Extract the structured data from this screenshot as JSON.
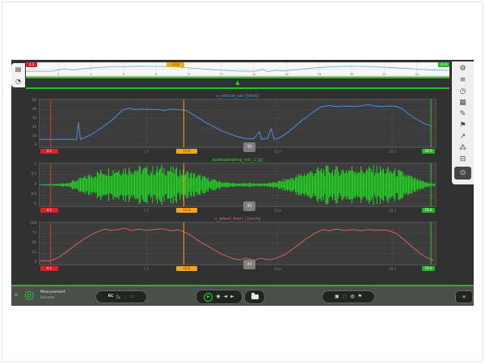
{
  "icons": {
    "left_tabs": [
      {
        "name": "measurement-files-tab",
        "glyph": "▤"
      },
      {
        "name": "time-view-tab",
        "glyph": "◔"
      }
    ],
    "sidebar": [
      {
        "name": "settings",
        "glyph": "⚙"
      },
      {
        "name": "channel-list",
        "glyph": "≡"
      },
      {
        "name": "stopwatch",
        "glyph": "◷"
      },
      {
        "name": "chart-config",
        "glyph": "▦"
      },
      {
        "name": "annotate-pen",
        "glyph": "✎"
      },
      {
        "name": "flag-marker",
        "glyph": "⚑"
      },
      {
        "name": "export",
        "glyph": "↗"
      },
      {
        "name": "network",
        "glyph": "⁂"
      },
      {
        "name": "vehicle",
        "glyph": "⊟"
      },
      {
        "name": "power",
        "glyph": "⊙"
      }
    ]
  },
  "timeline": {
    "badges": {
      "red": "4.1",
      "orange": "12.6",
      "green": "29.9"
    },
    "ticks": [
      "2",
      "4",
      "6",
      "8",
      "10",
      "12",
      "14",
      "16",
      "18",
      "20",
      "22",
      "24"
    ],
    "marker_glyph": "▲"
  },
  "charts_common": {
    "red_badge": "4.1",
    "orange_badge": "12.6",
    "green_badge": "29.9",
    "handle_label": "30"
  },
  "toolbar": {
    "fast_glyph": "»",
    "logo_glyph": "◎",
    "app_label_line1": "Measurement",
    "app_label_line2": "Recorder",
    "rc_label": "RC",
    "ruler_glyph": "◺",
    "dim1_glyph": "◦",
    "dim2_glyph": "▭",
    "play_glyph": "▶",
    "marker_glyph": "◉",
    "prev_glyph": "◄",
    "next_glyph": "►",
    "save_glyph": "▣",
    "save_dim_glyph": "▢",
    "print_glyph": "◍",
    "flag_glyph": "⚑",
    "close_glyph": "✕"
  },
  "colors": {
    "speed_blue": "#4a90d9",
    "audio_green": "#21e021",
    "wheel_red": "#d2635a",
    "cursor_red": "#e03434",
    "cursor_orange": "#f2a71b",
    "cursor_green": "#2dc62d"
  },
  "chart_data": [
    {
      "id": "overview-timeline",
      "type": "line",
      "color": "#6aa7d8",
      "stroke": 0.8,
      "grid": "#d9d9d9",
      "yticks": [
        "",
        "",
        ""
      ],
      "xticks": [
        {
          "pos": 7.7
        },
        {
          "pos": 15.4
        },
        {
          "pos": 23.1
        },
        {
          "pos": 30.8
        },
        {
          "pos": 38.5
        },
        {
          "pos": 46.2
        },
        {
          "pos": 53.8
        },
        {
          "pos": 61.5
        },
        {
          "pos": 69.2
        },
        {
          "pos": 76.9
        },
        {
          "pos": 84.6
        },
        {
          "pos": 92.3
        }
      ],
      "points": [
        [
          0,
          0.3
        ],
        [
          6,
          0.3
        ],
        [
          9,
          0.52
        ],
        [
          11,
          0.42
        ],
        [
          15,
          0.6
        ],
        [
          20,
          0.72
        ],
        [
          26,
          0.78
        ],
        [
          32,
          0.76
        ],
        [
          36,
          0.7
        ],
        [
          40,
          0.58
        ],
        [
          45,
          0.42
        ],
        [
          50,
          0.32
        ],
        [
          54,
          0.3
        ],
        [
          56,
          0.48
        ],
        [
          57,
          0.26
        ],
        [
          59,
          0.4
        ],
        [
          61,
          0.32
        ],
        [
          65,
          0.5
        ],
        [
          70,
          0.68
        ],
        [
          75,
          0.78
        ],
        [
          80,
          0.76
        ],
        [
          85,
          0.68
        ],
        [
          90,
          0.56
        ],
        [
          95,
          0.44
        ],
        [
          100,
          0.38
        ]
      ],
      "cursors": []
    },
    {
      "id": "vehicle-speed",
      "type": "line",
      "title": "v_vehicle_can [km/h]",
      "color": "#4a90d9",
      "stroke": 1,
      "yticks": [
        "50",
        "40",
        "30",
        "20",
        "10",
        "0"
      ],
      "xticks": [
        {
          "pos": 27,
          "label": "7.5"
        },
        {
          "pos": 60,
          "label": "15.0"
        },
        {
          "pos": 89,
          "label": "22.5"
        }
      ],
      "points": [
        [
          0,
          0.14
        ],
        [
          4,
          0.14
        ],
        [
          8.5,
          0.14
        ],
        [
          9.3,
          0.14
        ],
        [
          9.8,
          0.52
        ],
        [
          10.3,
          0.14
        ],
        [
          11.5,
          0.18
        ],
        [
          14,
          0.3
        ],
        [
          18,
          0.55
        ],
        [
          21,
          0.8
        ],
        [
          22.5,
          0.84
        ],
        [
          24,
          0.81
        ],
        [
          26,
          0.82
        ],
        [
          28,
          0.81
        ],
        [
          30,
          0.81
        ],
        [
          31.5,
          0.79
        ],
        [
          33,
          0.82
        ],
        [
          34.5,
          0.81
        ],
        [
          36,
          0.8
        ],
        [
          37,
          0.79
        ],
        [
          39,
          0.68
        ],
        [
          42,
          0.52
        ],
        [
          46,
          0.33
        ],
        [
          50,
          0.2
        ],
        [
          52,
          0.16
        ],
        [
          54,
          0.15
        ],
        [
          55.5,
          0.32
        ],
        [
          56,
          0.14
        ],
        [
          57.5,
          0.16
        ],
        [
          58.5,
          0.38
        ],
        [
          59.2,
          0.14
        ],
        [
          60.5,
          0.17
        ],
        [
          63,
          0.32
        ],
        [
          66,
          0.55
        ],
        [
          69,
          0.75
        ],
        [
          71,
          0.87
        ],
        [
          73,
          0.9
        ],
        [
          75,
          0.88
        ],
        [
          77,
          0.89
        ],
        [
          79,
          0.88
        ],
        [
          81,
          0.89
        ],
        [
          83,
          0.92
        ],
        [
          84.5,
          0.89
        ],
        [
          86.5,
          0.88
        ],
        [
          88.5,
          0.89
        ],
        [
          90,
          0.88
        ],
        [
          91.5,
          0.83
        ],
        [
          93,
          0.72
        ],
        [
          95,
          0.6
        ],
        [
          97,
          0.5
        ],
        [
          99,
          0.44
        ]
      ],
      "cursors": [
        {
          "color": "#e03434",
          "pos": 2.8
        },
        {
          "color": "#f2a71b",
          "pos": 36.4
        },
        {
          "color": "#2dc62d",
          "pos": 98.8
        }
      ]
    },
    {
      "id": "audio-waveform",
      "type": "waveform",
      "title": "audiosampling_mic_1 [g]",
      "color": "#21e021",
      "yticks": [
        "1",
        "0.5",
        "0",
        "-0.5",
        "-1"
      ],
      "xticks": [
        {
          "pos": 27,
          "label": "7.5"
        },
        {
          "pos": 60,
          "label": "15.0"
        },
        {
          "pos": 89,
          "label": "22.5"
        }
      ],
      "envelope": [
        [
          0,
          0.03
        ],
        [
          4,
          0.05
        ],
        [
          7,
          0.12
        ],
        [
          10,
          0.35
        ],
        [
          13,
          0.6
        ],
        [
          16,
          0.85
        ],
        [
          20,
          0.95
        ],
        [
          24,
          1.0
        ],
        [
          28,
          0.92
        ],
        [
          31,
          1.0
        ],
        [
          34,
          0.9
        ],
        [
          37,
          0.75
        ],
        [
          40,
          0.55
        ],
        [
          43,
          0.35
        ],
        [
          46,
          0.18
        ],
        [
          49,
          0.1
        ],
        [
          51,
          0.08
        ],
        [
          53,
          0.12
        ],
        [
          55,
          0.08
        ],
        [
          57,
          0.1
        ],
        [
          59,
          0.14
        ],
        [
          61,
          0.25
        ],
        [
          64,
          0.45
        ],
        [
          67,
          0.7
        ],
        [
          70,
          0.88
        ],
        [
          73,
          0.97
        ],
        [
          76,
          0.9
        ],
        [
          79,
          1.0
        ],
        [
          82,
          0.93
        ],
        [
          85,
          1.0
        ],
        [
          88,
          0.9
        ],
        [
          91,
          0.75
        ],
        [
          93,
          0.55
        ],
        [
          95,
          0.35
        ],
        [
          97,
          0.18
        ],
        [
          99,
          0.07
        ]
      ],
      "cursors": [
        {
          "color": "#e03434",
          "pos": 2.8
        },
        {
          "color": "#f2a71b",
          "pos": 36.4
        },
        {
          "color": "#2dc62d",
          "pos": 98.8
        }
      ]
    },
    {
      "id": "wheel-speed",
      "type": "line",
      "title": "v_wheel_front_l [km/h]",
      "color": "#d2635a",
      "stroke": 1,
      "yticks": [
        "100",
        "75",
        "50",
        "25",
        "0"
      ],
      "xticks": [
        {
          "pos": 27,
          "label": "7.5"
        },
        {
          "pos": 60,
          "label": "15.0"
        },
        {
          "pos": 89,
          "label": "22.5"
        }
      ],
      "points": [
        [
          0,
          0.05
        ],
        [
          3,
          0.06
        ],
        [
          5,
          0.15
        ],
        [
          8,
          0.38
        ],
        [
          11,
          0.6
        ],
        [
          14,
          0.78
        ],
        [
          16.5,
          0.87
        ],
        [
          18,
          0.84
        ],
        [
          20,
          0.86
        ],
        [
          21.5,
          0.9
        ],
        [
          23,
          0.84
        ],
        [
          25,
          0.87
        ],
        [
          27,
          0.84
        ],
        [
          29,
          0.86
        ],
        [
          31,
          0.88
        ],
        [
          33,
          0.83
        ],
        [
          35,
          0.85
        ],
        [
          36.5,
          0.8
        ],
        [
          38,
          0.72
        ],
        [
          40,
          0.58
        ],
        [
          43,
          0.4
        ],
        [
          46,
          0.22
        ],
        [
          48.5,
          0.12
        ],
        [
          50.5,
          0.08
        ],
        [
          52,
          0.13
        ],
        [
          54,
          0.07
        ],
        [
          56,
          0.12
        ],
        [
          58,
          0.08
        ],
        [
          60,
          0.13
        ],
        [
          62,
          0.22
        ],
        [
          64.5,
          0.4
        ],
        [
          67,
          0.6
        ],
        [
          69.5,
          0.76
        ],
        [
          71.5,
          0.86
        ],
        [
          73,
          0.83
        ],
        [
          75,
          0.87
        ],
        [
          77,
          0.84
        ],
        [
          79,
          0.86
        ],
        [
          81,
          0.83
        ],
        [
          83,
          0.86
        ],
        [
          85,
          0.84
        ],
        [
          87,
          0.85
        ],
        [
          88.5,
          0.82
        ],
        [
          90,
          0.76
        ],
        [
          92,
          0.6
        ],
        [
          94,
          0.42
        ],
        [
          96,
          0.25
        ],
        [
          98,
          0.12
        ],
        [
          99.5,
          0.07
        ]
      ],
      "cursors": [
        {
          "color": "#e03434",
          "pos": 2.8
        },
        {
          "color": "#f2a71b",
          "pos": 36.4
        },
        {
          "color": "#2dc62d",
          "pos": 98.8
        }
      ]
    }
  ]
}
